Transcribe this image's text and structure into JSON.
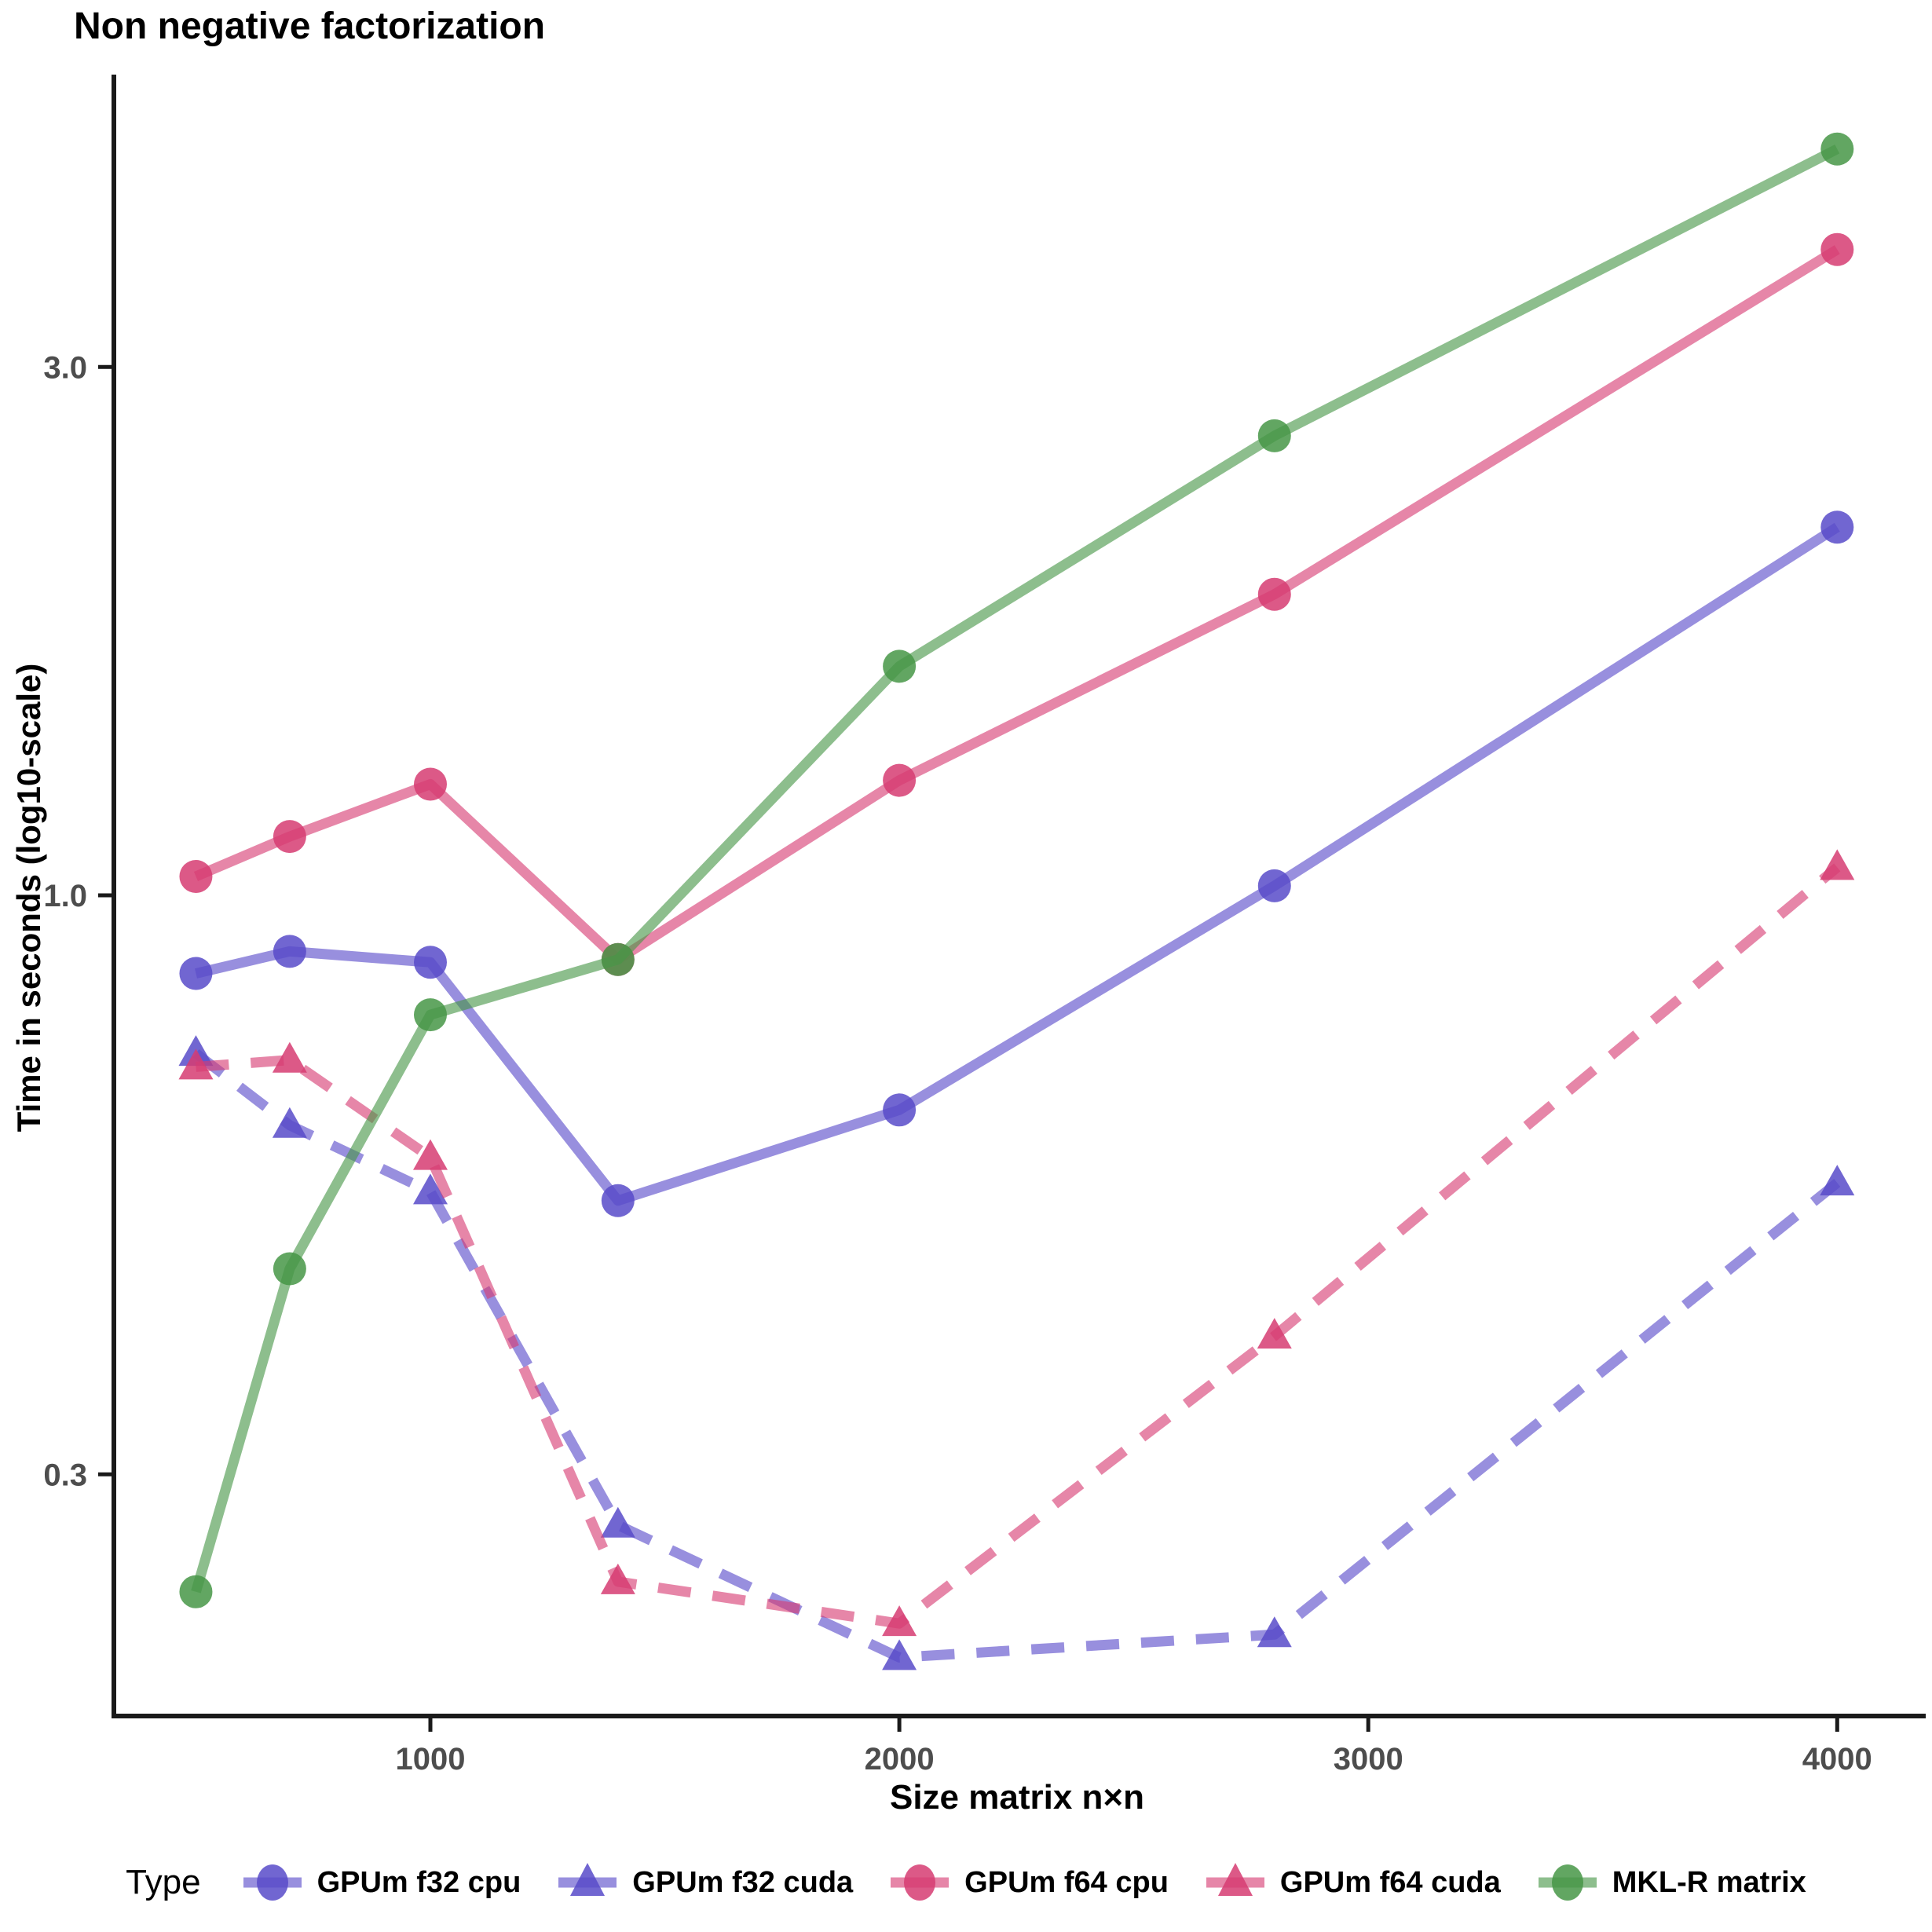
{
  "chart_data": {
    "type": "line",
    "title": "Non negative factorization",
    "xlabel": "Size matrix n×n",
    "ylabel": "Time in seconds (log10-scale)",
    "x_scale": "linear",
    "y_scale": "log10",
    "grid": false,
    "legend_title": "Type",
    "legend_position": "bottom",
    "x_ticks": [
      {
        "value": 1000,
        "label": "1000"
      },
      {
        "value": 2000,
        "label": "2000"
      },
      {
        "value": 3000,
        "label": "3000"
      },
      {
        "value": 4000,
        "label": "4000"
      }
    ],
    "y_ticks": [
      {
        "value": 3.0,
        "label": "3.0"
      },
      {
        "value": 1.0,
        "label": "1.0"
      },
      {
        "value": 0.3,
        "label": "0.3"
      }
    ],
    "xlim": [
      320,
      4180
    ],
    "ylim": [
      0.18,
      5.5
    ],
    "x": [
      500,
      700,
      1000,
      1400,
      2000,
      2800,
      4000
    ],
    "series": [
      {
        "name": "GPUm f32 cpu",
        "color": "#584BC9",
        "linestyle": "solid",
        "marker": "circle",
        "values": [
          0.85,
          0.89,
          0.87,
          0.53,
          0.64,
          1.02,
          2.15
        ]
      },
      {
        "name": "GPUm f32 cuda",
        "color": "#584BC9",
        "linestyle": "dashed",
        "marker": "triangle",
        "values": [
          0.72,
          0.62,
          0.54,
          0.27,
          0.205,
          0.215,
          0.55
        ]
      },
      {
        "name": "GPUm f64 cpu",
        "color": "#D63C72",
        "linestyle": "solid",
        "marker": "circle",
        "values": [
          1.04,
          1.13,
          1.26,
          0.875,
          1.27,
          1.87,
          3.83
        ]
      },
      {
        "name": "GPUm f64 cuda",
        "color": "#D63C72",
        "linestyle": "dashed",
        "marker": "triangle",
        "values": [
          0.7,
          0.71,
          0.58,
          0.24,
          0.22,
          0.4,
          1.06
        ]
      },
      {
        "name": "MKL-R matrix",
        "color": "#479647",
        "linestyle": "solid",
        "marker": "circle",
        "values": [
          0.235,
          0.46,
          0.78,
          0.875,
          1.61,
          2.6,
          4.72
        ]
      }
    ],
    "axis_color": "#1a1a1a",
    "tick_label_color": "#4d4d4d"
  }
}
